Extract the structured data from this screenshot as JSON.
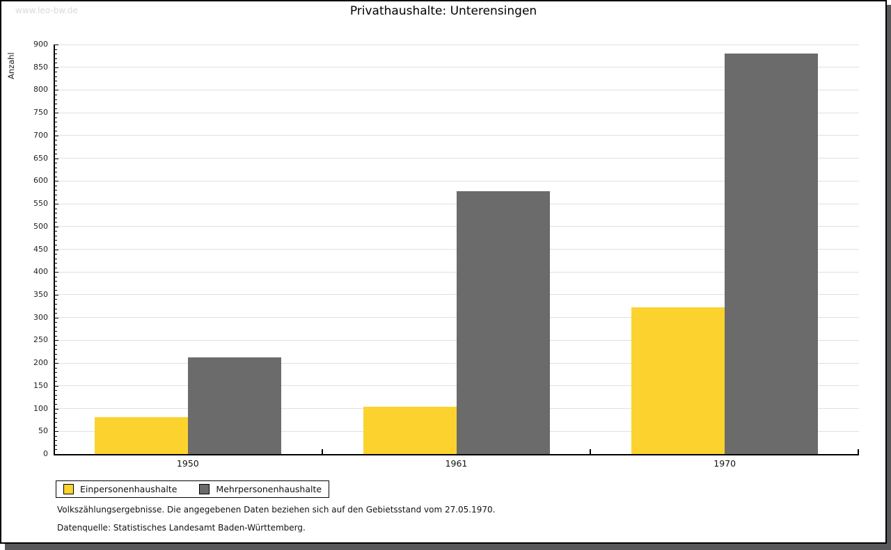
{
  "watermark": "www.leo-bw.de",
  "title": "Privathaushalte: Unterensingen",
  "chart_data": {
    "type": "bar",
    "title": "Privathaushalte: Unterensingen",
    "categories": [
      "1950",
      "1961",
      "1970"
    ],
    "series": [
      {
        "name": "Einpersonenhaushalte",
        "color": "#FCD22E",
        "values": [
          81,
          104,
          323
        ]
      },
      {
        "name": "Mehrpersonenhaushalte",
        "color": "#6B6B6B",
        "values": [
          213,
          577,
          880
        ]
      }
    ],
    "xlabel": "",
    "ylabel": "Anzahl",
    "ylim": [
      0,
      900
    ],
    "ytick_step": 50,
    "minor_tick_step": 10,
    "grid": true,
    "legend_position": "bottom-left"
  },
  "footer": {
    "line1": "Volkszählungsergebnisse. Die angegebenen Daten beziehen sich auf den Gebietsstand vom 27.05.1970.",
    "line2": "Datenquelle: Statistisches Landesamt Baden-Württemberg."
  },
  "colors": {
    "bar_yellow": "#FCD22E",
    "bar_gray": "#6B6B6B",
    "gridline": "#E0E0E0",
    "watermark": "#D9D9D9",
    "frame_shadow": "#58585A"
  }
}
